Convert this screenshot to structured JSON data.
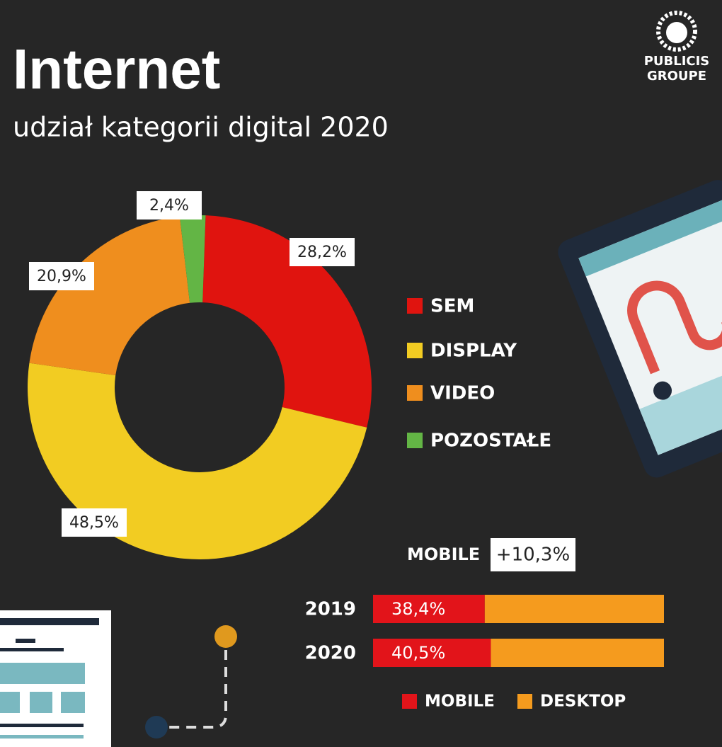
{
  "header": {
    "title": "Internet",
    "subtitle": "udział kategorii digital 2020"
  },
  "logo": {
    "line1": "PUBLICIS",
    "line2": "GROUPE"
  },
  "chart_data": [
    {
      "type": "pie",
      "categories": [
        "SEM",
        "DISPLAY",
        "VIDEO",
        "POZOSTAŁE"
      ],
      "values": [
        28.2,
        48.5,
        20.9,
        2.4
      ],
      "value_labels": [
        "28,2%",
        "48,5%",
        "20,9%",
        "2,4%"
      ],
      "colors": [
        "#e0140f",
        "#f2cc22",
        "#ef8e1e",
        "#63b545"
      ]
    },
    {
      "type": "bar",
      "categories": [
        "2019",
        "2020"
      ],
      "annotation": {
        "label": "MOBILE",
        "text": "+10,3%"
      },
      "xlim": [
        0,
        100
      ],
      "series": [
        {
          "name": "MOBILE",
          "color": "#e2141a",
          "values": [
            38.4,
            40.5
          ],
          "value_labels": [
            "38,4%",
            "40,5%"
          ]
        },
        {
          "name": "DESKTOP",
          "color": "#f59b1e",
          "values": [
            61.6,
            59.5
          ]
        }
      ]
    }
  ]
}
